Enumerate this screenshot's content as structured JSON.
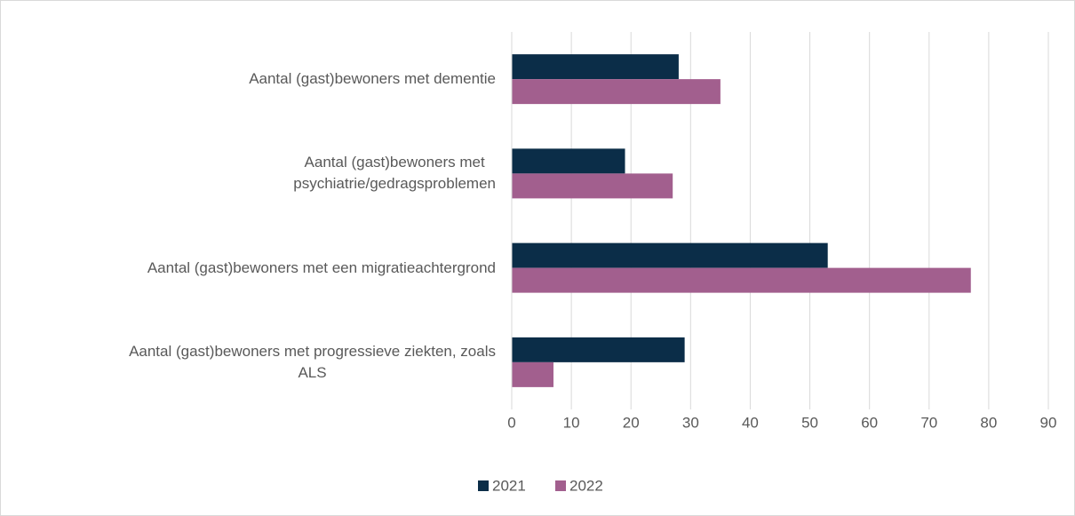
{
  "chart_data": {
    "type": "bar",
    "orientation": "horizontal",
    "categories": [
      "Aantal (gast)bewoners met dementie",
      "Aantal (gast)bewoners met \npsychiatrie/gedragsproblemen",
      "Aantal (gast)bewoners met een migratieachtergrond",
      "Aantal (gast)bewoners met progressieve ziekten, zoals\nALS"
    ],
    "series": [
      {
        "name": "2021",
        "color": "#0b2d48",
        "values": [
          28,
          19,
          53,
          29
        ]
      },
      {
        "name": "2022",
        "color": "#a25f8e",
        "values": [
          35,
          27,
          77,
          7
        ]
      }
    ],
    "xlim": [
      0,
      90
    ],
    "xticks": [
      0,
      10,
      20,
      30,
      40,
      50,
      60,
      70,
      80,
      90
    ],
    "grid": true,
    "legend": "bottom"
  }
}
